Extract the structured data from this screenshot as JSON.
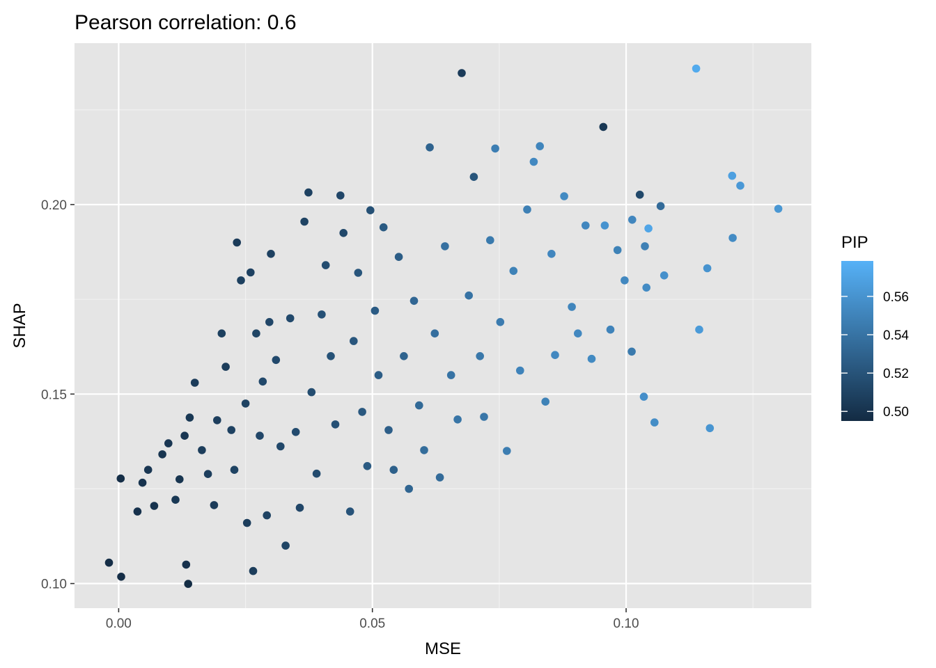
{
  "chart_data": {
    "type": "scatter",
    "title": "Pearson correlation: 0.6",
    "xlabel": "MSE",
    "ylabel": "SHAP",
    "xlim": [
      -0.0087,
      0.1365
    ],
    "ylim": [
      0.0935,
      0.2426
    ],
    "x_ticks": [
      0.0,
      0.05,
      0.1
    ],
    "x_tick_labels": [
      "0.00",
      "0.05",
      "0.10"
    ],
    "y_ticks": [
      0.1,
      0.15,
      0.2
    ],
    "y_tick_labels": [
      "0.10",
      "0.15",
      "0.20"
    ],
    "grid": true,
    "background": "#e5e5e5",
    "legend": {
      "title": "PIP",
      "position": "right",
      "color_low": "#132b43",
      "color_high": "#56b1f7",
      "range": [
        0.495,
        0.5785
      ],
      "ticks": [
        0.5,
        0.52,
        0.54,
        0.56
      ],
      "tick_labels": [
        "0.50",
        "0.52",
        "0.54",
        "0.56"
      ]
    },
    "points": [
      [
        -0.0019,
        0.1055,
        0.497
      ],
      [
        0.0005,
        0.1018,
        0.497
      ],
      [
        0.0137,
        0.0999,
        0.496
      ],
      [
        0.0133,
        0.105,
        0.499
      ],
      [
        0.0004,
        0.1277,
        0.497
      ],
      [
        0.0037,
        0.119,
        0.499
      ],
      [
        0.0047,
        0.1266,
        0.5
      ],
      [
        0.0058,
        0.13,
        0.502
      ],
      [
        0.007,
        0.1205,
        0.5
      ],
      [
        0.0086,
        0.1341,
        0.501
      ],
      [
        0.0098,
        0.137,
        0.502
      ],
      [
        0.0112,
        0.1221,
        0.503
      ],
      [
        0.012,
        0.1275,
        0.501
      ],
      [
        0.013,
        0.139,
        0.502
      ],
      [
        0.014,
        0.1438,
        0.503
      ],
      [
        0.015,
        0.153,
        0.505
      ],
      [
        0.0164,
        0.1352,
        0.506
      ],
      [
        0.0176,
        0.1289,
        0.507
      ],
      [
        0.0188,
        0.1207,
        0.505
      ],
      [
        0.0194,
        0.1431,
        0.507
      ],
      [
        0.0203,
        0.166,
        0.508
      ],
      [
        0.0211,
        0.1572,
        0.506
      ],
      [
        0.0222,
        0.1405,
        0.509
      ],
      [
        0.0228,
        0.13,
        0.51
      ],
      [
        0.0233,
        0.19,
        0.505
      ],
      [
        0.0241,
        0.18,
        0.508
      ],
      [
        0.025,
        0.1475,
        0.51
      ],
      [
        0.0253,
        0.116,
        0.507
      ],
      [
        0.026,
        0.1821,
        0.509
      ],
      [
        0.0265,
        0.1033,
        0.506
      ],
      [
        0.0271,
        0.166,
        0.511
      ],
      [
        0.0278,
        0.139,
        0.512
      ],
      [
        0.0284,
        0.1533,
        0.513
      ],
      [
        0.0292,
        0.118,
        0.51
      ],
      [
        0.0297,
        0.169,
        0.512
      ],
      [
        0.03,
        0.187,
        0.509
      ],
      [
        0.031,
        0.159,
        0.514
      ],
      [
        0.0319,
        0.1362,
        0.513
      ],
      [
        0.0329,
        0.11,
        0.511
      ],
      [
        0.0338,
        0.17,
        0.514
      ],
      [
        0.0349,
        0.14,
        0.515
      ],
      [
        0.0357,
        0.12,
        0.512
      ],
      [
        0.0366,
        0.1955,
        0.51
      ],
      [
        0.0374,
        0.2032,
        0.509
      ],
      [
        0.038,
        0.1505,
        0.516
      ],
      [
        0.039,
        0.129,
        0.515
      ],
      [
        0.04,
        0.171,
        0.518
      ],
      [
        0.0408,
        0.184,
        0.516
      ],
      [
        0.0418,
        0.16,
        0.519
      ],
      [
        0.0427,
        0.142,
        0.518
      ],
      [
        0.0437,
        0.2024,
        0.512
      ],
      [
        0.0443,
        0.1925,
        0.513
      ],
      [
        0.0456,
        0.119,
        0.52
      ],
      [
        0.0463,
        0.164,
        0.522
      ],
      [
        0.0472,
        0.182,
        0.521
      ],
      [
        0.048,
        0.1453,
        0.523
      ],
      [
        0.049,
        0.131,
        0.524
      ],
      [
        0.0496,
        0.1985,
        0.518
      ],
      [
        0.0505,
        0.172,
        0.525
      ],
      [
        0.0512,
        0.155,
        0.526
      ],
      [
        0.0522,
        0.194,
        0.524
      ],
      [
        0.0532,
        0.1405,
        0.527
      ],
      [
        0.0542,
        0.13,
        0.528
      ],
      [
        0.0552,
        0.1862,
        0.526
      ],
      [
        0.0562,
        0.16,
        0.53
      ],
      [
        0.0572,
        0.125,
        0.531
      ],
      [
        0.0582,
        0.1746,
        0.532
      ],
      [
        0.0592,
        0.147,
        0.534
      ],
      [
        0.0602,
        0.1352,
        0.536
      ],
      [
        0.0613,
        0.2151,
        0.53
      ],
      [
        0.0623,
        0.166,
        0.537
      ],
      [
        0.0633,
        0.128,
        0.535
      ],
      [
        0.0643,
        0.189,
        0.538
      ],
      [
        0.0655,
        0.155,
        0.54
      ],
      [
        0.0668,
        0.1433,
        0.541
      ],
      [
        0.0676,
        0.2347,
        0.505
      ],
      [
        0.069,
        0.176,
        0.54
      ],
      [
        0.07,
        0.2073,
        0.521
      ],
      [
        0.0712,
        0.16,
        0.543
      ],
      [
        0.072,
        0.144,
        0.542
      ],
      [
        0.0732,
        0.1906,
        0.544
      ],
      [
        0.0742,
        0.2148,
        0.547
      ],
      [
        0.0752,
        0.169,
        0.545
      ],
      [
        0.0765,
        0.135,
        0.546
      ],
      [
        0.0778,
        0.1825,
        0.549
      ],
      [
        0.0791,
        0.1562,
        0.55
      ],
      [
        0.0805,
        0.1987,
        0.548
      ],
      [
        0.0818,
        0.2113,
        0.553
      ],
      [
        0.083,
        0.2154,
        0.551
      ],
      [
        0.0841,
        0.148,
        0.549
      ],
      [
        0.0853,
        0.187,
        0.552
      ],
      [
        0.086,
        0.1603,
        0.553
      ],
      [
        0.0878,
        0.2022,
        0.554
      ],
      [
        0.0893,
        0.173,
        0.551
      ],
      [
        0.0905,
        0.166,
        0.553
      ],
      [
        0.092,
        0.1945,
        0.552
      ],
      [
        0.0932,
        0.1593,
        0.554
      ],
      [
        0.0955,
        0.2205,
        0.503
      ],
      [
        0.0969,
        0.167,
        0.55
      ],
      [
        0.0983,
        0.188,
        0.549
      ],
      [
        0.0997,
        0.18,
        0.553
      ],
      [
        0.1012,
        0.196,
        0.552
      ],
      [
        0.1027,
        0.2026,
        0.513
      ],
      [
        0.1037,
        0.189,
        0.548
      ],
      [
        0.1044,
        0.1937,
        0.571
      ],
      [
        0.104,
        0.1781,
        0.555
      ],
      [
        0.1056,
        0.1425,
        0.556
      ],
      [
        0.1075,
        0.1813,
        0.558
      ],
      [
        0.1035,
        0.1493,
        0.557
      ],
      [
        0.1138,
        0.2359,
        0.574
      ],
      [
        0.1144,
        0.167,
        0.564
      ],
      [
        0.116,
        0.1832,
        0.56
      ],
      [
        0.1165,
        0.141,
        0.561
      ],
      [
        0.1209,
        0.2076,
        0.568
      ],
      [
        0.121,
        0.1912,
        0.555
      ],
      [
        0.1225,
        0.205,
        0.563
      ],
      [
        0.13,
        0.1989,
        0.562
      ],
      [
        0.1068,
        0.1996,
        0.535
      ],
      [
        0.1011,
        0.1612,
        0.544
      ],
      [
        0.0958,
        0.1945,
        0.56
      ]
    ]
  }
}
